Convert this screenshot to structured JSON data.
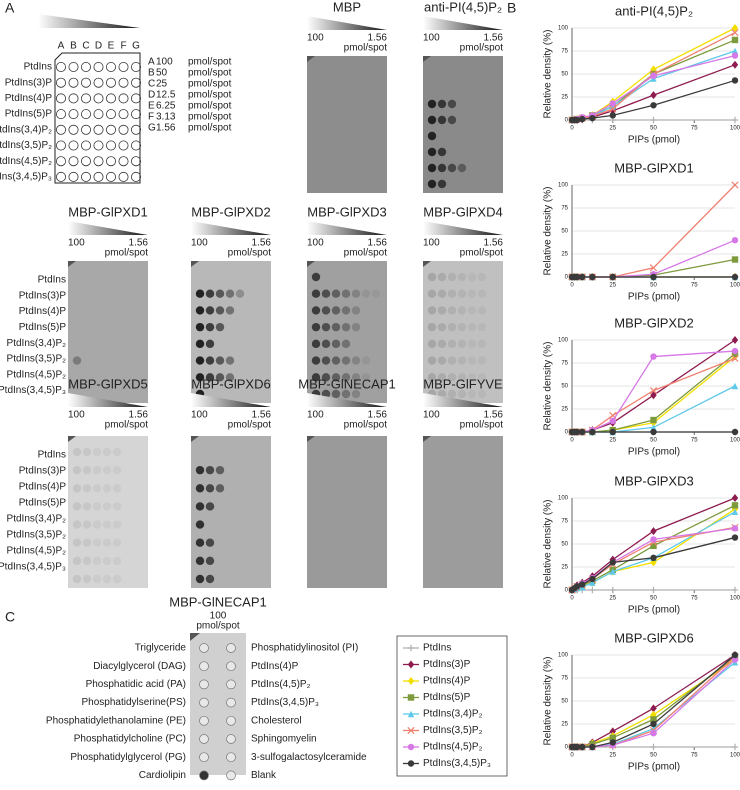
{
  "panel_labels": [
    "A",
    "B",
    "C"
  ],
  "panel_a": {
    "columns": [
      "A",
      "B",
      "C",
      "D",
      "E",
      "F",
      "G"
    ],
    "lipids": [
      "PtdIns",
      "PtdIns(3)P",
      "PtdIns(4)P",
      "PtdIns(5)P",
      "PtdIns(3,4)P₂",
      "PtdIns(3,5)P₂",
      "PtdIns(4,5)P₂",
      "PtdIns(3,4,5)P₃"
    ],
    "amounts": [
      {
        "letter": "A",
        "amount": 100
      },
      {
        "letter": "B",
        "amount": 50
      },
      {
        "letter": "C",
        "amount": 25
      },
      {
        "letter": "D",
        "amount": 12.5
      },
      {
        "letter": "E",
        "amount": 6.25
      },
      {
        "letter": "F",
        "amount": 3.13
      },
      {
        "letter": "G",
        "amount": 1.56
      }
    ],
    "unit": "pmol/spot",
    "gradient_high": 100,
    "gradient_low": 1.56,
    "blots": [
      "MBP",
      "anti-PI(4,5)P₂",
      "MBP-GlPXD1",
      "MBP-GlPXD2",
      "MBP-GlPXD3",
      "MBP-GlPXD4",
      "MBP-GlPXD5",
      "MBP-GlPXD6",
      "MBP-GlNECAP1",
      "MBP-GlFYVE"
    ]
  },
  "panel_c": {
    "title": "MBP-GlNECAP1",
    "amount": 100,
    "unit": "pmol/spot",
    "left": [
      "Triglyceride",
      "Diacylglycerol (DAG)",
      "Phosphatidic acid (PA)",
      "Phosphatidylserine(PS)",
      "Phosphatidylethanolamine (PE)",
      "Phosphatidylcholine (PC)",
      "Phosphatidylglycerol (PG)",
      "Cardiolipin"
    ],
    "right": [
      "Phosphatidylinositol (PI)",
      "PtdIns(4)P",
      "PtdIns(4,5)P₂",
      "PtdIns(3,4,5)P₃",
      "Cholesterol",
      "Sphingomyelin",
      "3-sulfogalactosylceramide",
      "Blank"
    ]
  },
  "chart_data": [
    {
      "type": "line",
      "title": "anti-PI(4,5)P₂",
      "x_label": "PIPs (pmol)",
      "y_label": "Relative density (%)",
      "x": [
        0,
        1.56,
        3.13,
        6.25,
        12.5,
        25,
        50,
        100
      ],
      "xlim": [
        0,
        100
      ],
      "xticks": [
        0,
        25,
        50,
        75,
        100
      ],
      "ylim": [
        0,
        100
      ],
      "yticks": [
        0,
        25,
        50,
        75,
        100
      ],
      "grid": true,
      "series": [
        {
          "name": "PtdIns",
          "color": "#b0b0b0",
          "marker": "plus",
          "values": [
            0,
            0,
            0,
            0,
            0,
            0,
            0,
            0
          ]
        },
        {
          "name": "PtdIns(3)P",
          "color": "#8e1b4f",
          "marker": "diamond",
          "values": [
            0,
            0,
            0,
            1,
            3,
            10,
            27,
            60
          ]
        },
        {
          "name": "PtdIns(4)P",
          "color": "#f2df00",
          "marker": "diamond",
          "values": [
            0,
            0,
            1,
            2,
            5,
            20,
            55,
            100
          ]
        },
        {
          "name": "PtdIns(5)P",
          "color": "#7d9a3c",
          "marker": "square",
          "values": [
            0,
            0,
            1,
            2,
            5,
            15,
            50,
            87
          ]
        },
        {
          "name": "PtdIns(3,4)P₂",
          "color": "#5ec8ea",
          "marker": "triangle",
          "values": [
            0,
            0,
            1,
            2,
            4,
            15,
            45,
            75
          ]
        },
        {
          "name": "PtdIns(3,5)P₂",
          "color": "#f08070",
          "marker": "x",
          "values": [
            0,
            0,
            1,
            2,
            4,
            12,
            50,
            95
          ]
        },
        {
          "name": "PtdIns(4,5)P₂",
          "color": "#d678e6",
          "marker": "circle",
          "values": [
            0,
            0,
            1,
            3,
            5,
            18,
            48,
            70
          ]
        },
        {
          "name": "PtdIns(3,4,5)P₃",
          "color": "#3a3a3a",
          "marker": "circle",
          "values": [
            0,
            0,
            0,
            1,
            2,
            5,
            16,
            43
          ]
        }
      ]
    },
    {
      "type": "line",
      "title": "MBP-GlPXD1",
      "x_label": "PIPs (pmol)",
      "y_label": "Relative density (%)",
      "x": [
        0,
        1.56,
        3.13,
        6.25,
        12.5,
        25,
        50,
        100
      ],
      "xlim": [
        0,
        100
      ],
      "xticks": [
        0,
        25,
        50,
        75,
        100
      ],
      "ylim": [
        0,
        100
      ],
      "yticks": [
        0,
        25,
        50,
        75,
        100
      ],
      "grid": true,
      "series": [
        {
          "name": "PtdIns",
          "color": "#b0b0b0",
          "marker": "plus",
          "values": [
            0,
            0,
            0,
            0,
            0,
            0,
            0,
            0
          ]
        },
        {
          "name": "PtdIns(3)P",
          "color": "#8e1b4f",
          "marker": "diamond",
          "values": [
            0,
            0,
            0,
            0,
            0,
            0,
            0,
            0
          ]
        },
        {
          "name": "PtdIns(4)P",
          "color": "#f2df00",
          "marker": "diamond",
          "values": [
            0,
            0,
            0,
            0,
            0,
            0,
            0,
            0
          ]
        },
        {
          "name": "PtdIns(5)P",
          "color": "#7d9a3c",
          "marker": "square",
          "values": [
            0,
            0,
            0,
            0,
            0,
            0,
            2,
            19
          ]
        },
        {
          "name": "PtdIns(3,4)P₂",
          "color": "#5ec8ea",
          "marker": "triangle",
          "values": [
            0,
            0,
            0,
            0,
            0,
            0,
            0,
            0
          ]
        },
        {
          "name": "PtdIns(3,5)P₂",
          "color": "#f08070",
          "marker": "x",
          "values": [
            0,
            0,
            0,
            0,
            0,
            0,
            10,
            100
          ]
        },
        {
          "name": "PtdIns(4,5)P₂",
          "color": "#d678e6",
          "marker": "circle",
          "values": [
            0,
            0,
            0,
            0,
            0,
            0,
            3,
            40
          ]
        },
        {
          "name": "PtdIns(3,4,5)P₃",
          "color": "#3a3a3a",
          "marker": "circle",
          "values": [
            0,
            0,
            0,
            0,
            0,
            0,
            0,
            0
          ]
        }
      ]
    },
    {
      "type": "line",
      "title": "MBP-GlPXD2",
      "x_label": "PIPs (pmol)",
      "y_label": "Relative density (%)",
      "x": [
        0,
        1.56,
        3.13,
        6.25,
        12.5,
        25,
        50,
        100
      ],
      "xlim": [
        0,
        100
      ],
      "xticks": [
        0,
        25,
        50,
        75,
        100
      ],
      "ylim": [
        0,
        100
      ],
      "yticks": [
        0,
        25,
        50,
        75,
        100
      ],
      "grid": true,
      "series": [
        {
          "name": "PtdIns",
          "color": "#b0b0b0",
          "marker": "plus",
          "values": [
            0,
            0,
            0,
            0,
            0,
            0,
            0,
            0
          ]
        },
        {
          "name": "PtdIns(3)P",
          "color": "#8e1b4f",
          "marker": "diamond",
          "values": [
            0,
            0,
            0,
            0,
            2,
            10,
            40,
            100
          ]
        },
        {
          "name": "PtdIns(4)P",
          "color": "#f2df00",
          "marker": "diamond",
          "values": [
            0,
            0,
            0,
            0,
            0,
            2,
            10,
            82
          ]
        },
        {
          "name": "PtdIns(5)P",
          "color": "#7d9a3c",
          "marker": "square",
          "values": [
            0,
            0,
            0,
            0,
            0,
            2,
            13,
            85
          ]
        },
        {
          "name": "PtdIns(3,4)P₂",
          "color": "#5ec8ea",
          "marker": "triangle",
          "values": [
            0,
            0,
            0,
            0,
            0,
            0,
            5,
            50
          ]
        },
        {
          "name": "PtdIns(3,5)P₂",
          "color": "#f08070",
          "marker": "x",
          "values": [
            0,
            0,
            0,
            0,
            2,
            18,
            45,
            80
          ]
        },
        {
          "name": "PtdIns(4,5)P₂",
          "color": "#d678e6",
          "marker": "circle",
          "values": [
            0,
            0,
            0,
            0,
            2,
            12,
            82,
            88
          ]
        },
        {
          "name": "PtdIns(3,4,5)P₃",
          "color": "#3a3a3a",
          "marker": "circle",
          "values": [
            0,
            0,
            0,
            0,
            0,
            0,
            0,
            0
          ]
        }
      ]
    },
    {
      "type": "line",
      "title": "MBP-GlPXD3",
      "x_label": "PIPs (pmol)",
      "y_label": "Relative density (%)",
      "x": [
        0,
        1.56,
        3.13,
        6.25,
        12.5,
        25,
        50,
        100
      ],
      "xlim": [
        0,
        100
      ],
      "xticks": [
        0,
        25,
        50,
        75,
        100
      ],
      "ylim": [
        0,
        100
      ],
      "yticks": [
        0,
        25,
        50,
        75,
        100
      ],
      "grid": true,
      "series": [
        {
          "name": "PtdIns",
          "color": "#b0b0b0",
          "marker": "plus",
          "values": [
            0,
            0,
            0,
            0,
            0,
            0,
            0,
            0
          ]
        },
        {
          "name": "PtdIns(3)P",
          "color": "#8e1b4f",
          "marker": "diamond",
          "values": [
            0,
            2,
            5,
            8,
            15,
            33,
            64,
            100
          ]
        },
        {
          "name": "PtdIns(4)P",
          "color": "#f2df00",
          "marker": "diamond",
          "values": [
            0,
            1,
            2,
            4,
            8,
            20,
            30,
            88
          ]
        },
        {
          "name": "PtdIns(5)P",
          "color": "#7d9a3c",
          "marker": "square",
          "values": [
            0,
            1,
            3,
            5,
            10,
            22,
            48,
            92
          ]
        },
        {
          "name": "PtdIns(3,4)P₂",
          "color": "#5ec8ea",
          "marker": "triangle",
          "values": [
            0,
            1,
            2,
            3,
            8,
            20,
            35,
            85
          ]
        },
        {
          "name": "PtdIns(3,5)P₂",
          "color": "#f08070",
          "marker": "x",
          "values": [
            0,
            2,
            4,
            6,
            12,
            28,
            52,
            68
          ]
        },
        {
          "name": "PtdIns(4,5)P₂",
          "color": "#d678e6",
          "marker": "circle",
          "values": [
            0,
            2,
            4,
            7,
            13,
            30,
            55,
            67
          ]
        },
        {
          "name": "PtdIns(3,4,5)P₃",
          "color": "#3a3a3a",
          "marker": "circle",
          "values": [
            0,
            2,
            4,
            6,
            12,
            30,
            35,
            57
          ]
        }
      ]
    },
    {
      "type": "line",
      "title": "MBP-GlPXD6",
      "x_label": "PIPs (pmol)",
      "y_label": "Relative density (%)",
      "x": [
        0,
        1.56,
        3.13,
        6.25,
        12.5,
        25,
        50,
        100
      ],
      "xlim": [
        0,
        100
      ],
      "xticks": [
        0,
        25,
        50,
        75,
        100
      ],
      "ylim": [
        0,
        100
      ],
      "yticks": [
        0,
        25,
        50,
        75,
        100
      ],
      "grid": true,
      "series": [
        {
          "name": "PtdIns",
          "color": "#b0b0b0",
          "marker": "plus",
          "values": [
            0,
            0,
            0,
            0,
            0,
            0,
            0,
            0
          ]
        },
        {
          "name": "PtdIns(3)P",
          "color": "#8e1b4f",
          "marker": "diamond",
          "values": [
            0,
            0,
            0,
            0,
            5,
            17,
            42,
            100
          ]
        },
        {
          "name": "PtdIns(4)P",
          "color": "#f2df00",
          "marker": "diamond",
          "values": [
            0,
            0,
            0,
            0,
            4,
            12,
            35,
            95
          ]
        },
        {
          "name": "PtdIns(5)P",
          "color": "#7d9a3c",
          "marker": "square",
          "values": [
            0,
            0,
            0,
            0,
            3,
            10,
            30,
            98
          ]
        },
        {
          "name": "PtdIns(3,4)P₂",
          "color": "#5ec8ea",
          "marker": "triangle",
          "values": [
            0,
            0,
            0,
            0,
            0,
            3,
            20,
            92
          ]
        },
        {
          "name": "PtdIns(3,5)P₂",
          "color": "#f08070",
          "marker": "x",
          "values": [
            0,
            0,
            0,
            0,
            0,
            2,
            18,
            98
          ]
        },
        {
          "name": "PtdIns(4,5)P₂",
          "color": "#d678e6",
          "marker": "circle",
          "values": [
            0,
            0,
            0,
            0,
            0,
            2,
            15,
            95
          ]
        },
        {
          "name": "PtdIns(3,4,5)P₃",
          "color": "#3a3a3a",
          "marker": "circle",
          "values": [
            0,
            0,
            0,
            0,
            0,
            5,
            25,
            100
          ]
        }
      ]
    }
  ]
}
